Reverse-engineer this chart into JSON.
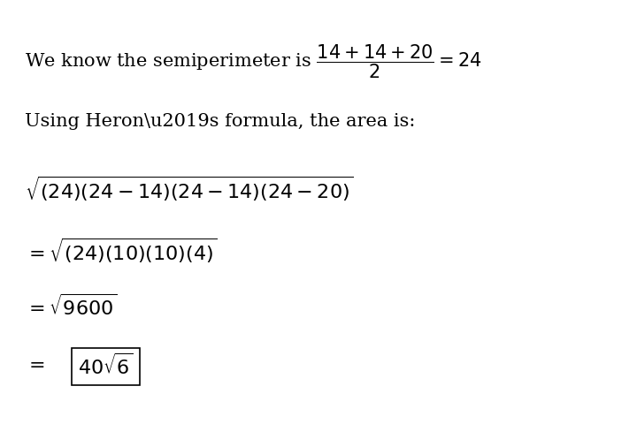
{
  "background_color": "#ffffff",
  "text_color": "#000000",
  "figsize": [
    7.2,
    4.8
  ],
  "dpi": 100,
  "line1": "We know the semiperimeter is $\\dfrac{14 + 14 + 20}{2} = 24$",
  "line2": "Using Heron\\u2019s formula, the area is:",
  "line3": "$\\sqrt{(24)(24-14)(24-14)(24-20)}$",
  "line4": "$= \\sqrt{(24)(10)(10)(4)}$",
  "line5": "$= \\sqrt{9600}$",
  "line6": "$= 40\\sqrt{6}$",
  "fontsize_main": 15,
  "fontsize_math": 16
}
